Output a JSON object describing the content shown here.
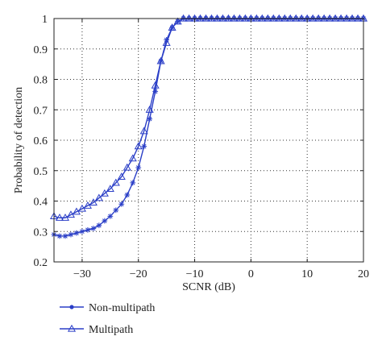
{
  "chart_data": {
    "type": "line",
    "title": "",
    "xlabel": "SCNR (dB)",
    "ylabel": "Probability of detection",
    "xlim": [
      -35,
      20
    ],
    "ylim": [
      0.2,
      1
    ],
    "xticks": [
      -30,
      -20,
      -10,
      0,
      10,
      20
    ],
    "xtick_labels": [
      "−30",
      "−20",
      "−10",
      "0",
      "10",
      "20"
    ],
    "yticks": [
      0.2,
      0.3,
      0.4,
      0.5,
      0.6,
      0.7,
      0.8,
      0.9,
      1
    ],
    "ytick_labels": [
      "0.2",
      "0.3",
      "0.4",
      "0.5",
      "0.6",
      "0.7",
      "0.8",
      "0.9",
      "1"
    ],
    "grid": true,
    "grid_style": "dotted",
    "legend_position": "below",
    "line_color": "#2b3fc7",
    "series": [
      {
        "name": "Non-multipath",
        "marker": "asterisk",
        "x": [
          -35,
          -34,
          -33,
          -32,
          -31,
          -30,
          -29,
          -28,
          -27,
          -26,
          -25,
          -24,
          -23,
          -22,
          -21,
          -20,
          -19,
          -18,
          -17,
          -16,
          -15,
          -14,
          -13,
          -12,
          -11,
          -10,
          -9,
          -8,
          -7,
          -6,
          -5,
          -4,
          -3,
          -2,
          -1,
          0,
          1,
          2,
          3,
          4,
          5,
          6,
          7,
          8,
          9,
          10,
          11,
          12,
          13,
          14,
          15,
          16,
          17,
          18,
          19,
          20
        ],
        "values": [
          0.29,
          0.285,
          0.285,
          0.29,
          0.295,
          0.3,
          0.305,
          0.31,
          0.32,
          0.335,
          0.35,
          0.37,
          0.39,
          0.42,
          0.46,
          0.51,
          0.58,
          0.67,
          0.76,
          0.86,
          0.93,
          0.97,
          0.99,
          1,
          1,
          1,
          1,
          1,
          1,
          1,
          1,
          1,
          1,
          1,
          1,
          1,
          1,
          1,
          1,
          1,
          1,
          1,
          1,
          1,
          1,
          1,
          1,
          1,
          1,
          1,
          1,
          1,
          1,
          1,
          1,
          1
        ]
      },
      {
        "name": "Multipath",
        "marker": "triangle",
        "x": [
          -35,
          -34,
          -33,
          -32,
          -31,
          -30,
          -29,
          -28,
          -27,
          -26,
          -25,
          -24,
          -23,
          -22,
          -21,
          -20,
          -19,
          -18,
          -17,
          -16,
          -15,
          -14,
          -13,
          -12,
          -11,
          -10,
          -9,
          -8,
          -7,
          -6,
          -5,
          -4,
          -3,
          -2,
          -1,
          0,
          1,
          2,
          3,
          4,
          5,
          6,
          7,
          8,
          9,
          10,
          11,
          12,
          13,
          14,
          15,
          16,
          17,
          18,
          19,
          20
        ],
        "values": [
          0.35,
          0.345,
          0.345,
          0.355,
          0.365,
          0.375,
          0.385,
          0.395,
          0.41,
          0.425,
          0.44,
          0.46,
          0.48,
          0.51,
          0.54,
          0.58,
          0.63,
          0.7,
          0.78,
          0.86,
          0.92,
          0.97,
          0.99,
          1,
          1,
          1,
          1,
          1,
          1,
          1,
          1,
          1,
          1,
          1,
          1,
          1,
          1,
          1,
          1,
          1,
          1,
          1,
          1,
          1,
          1,
          1,
          1,
          1,
          1,
          1,
          1,
          1,
          1,
          1,
          1,
          1
        ]
      }
    ]
  }
}
